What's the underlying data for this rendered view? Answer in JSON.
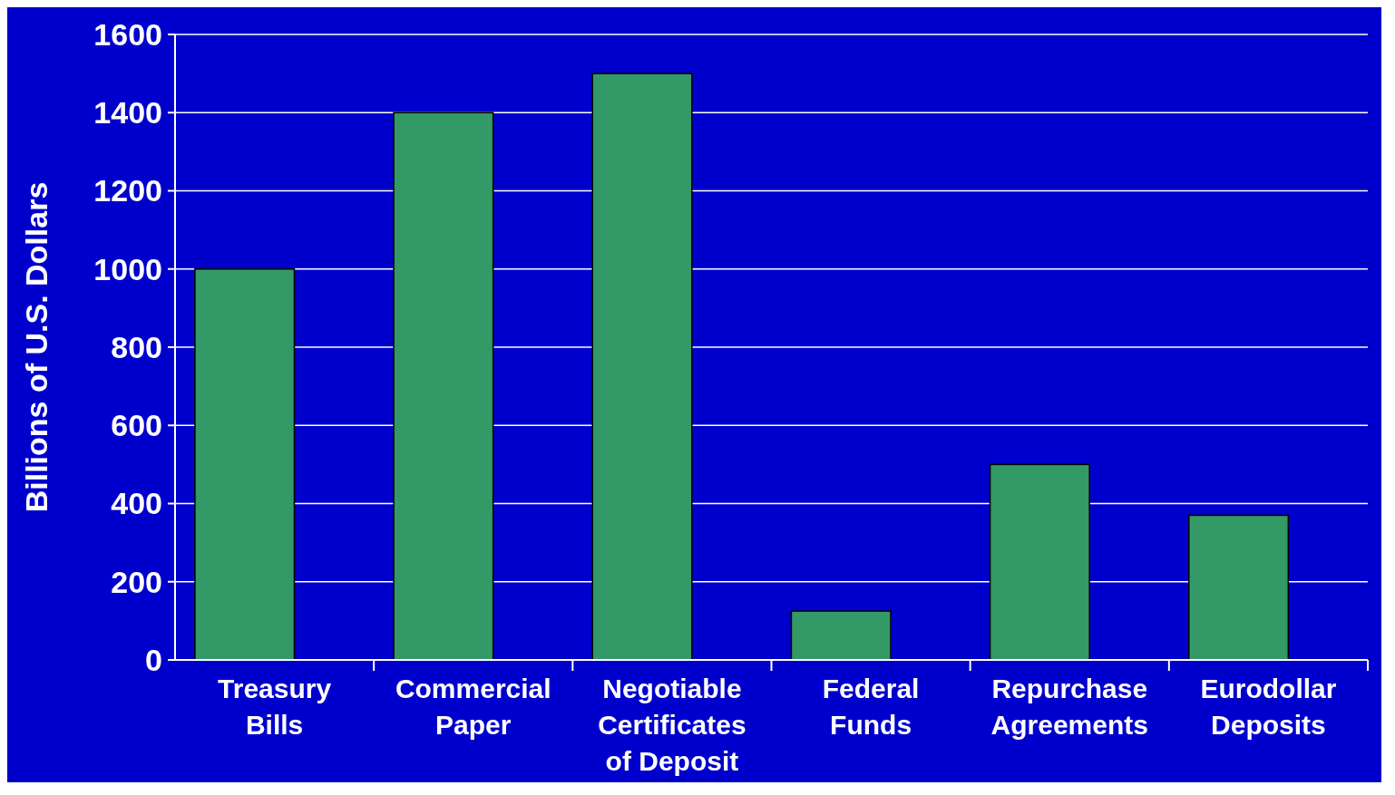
{
  "chart_data": {
    "type": "bar",
    "ylabel": "Billions of U.S. Dollars",
    "categories": [
      "Treasury Bills",
      "Commercial Paper",
      "Negotiable Certificates of Deposit",
      "Federal Funds",
      "Repurchase Agreements",
      "Eurodollar Deposits"
    ],
    "values": [
      1000,
      1400,
      1500,
      125,
      500,
      370
    ],
    "color": "#339966",
    "ylim": [
      0,
      1600
    ],
    "yticks": [
      0,
      200,
      400,
      600,
      800,
      1000,
      1200,
      1400,
      1600
    ],
    "grid": "y"
  }
}
